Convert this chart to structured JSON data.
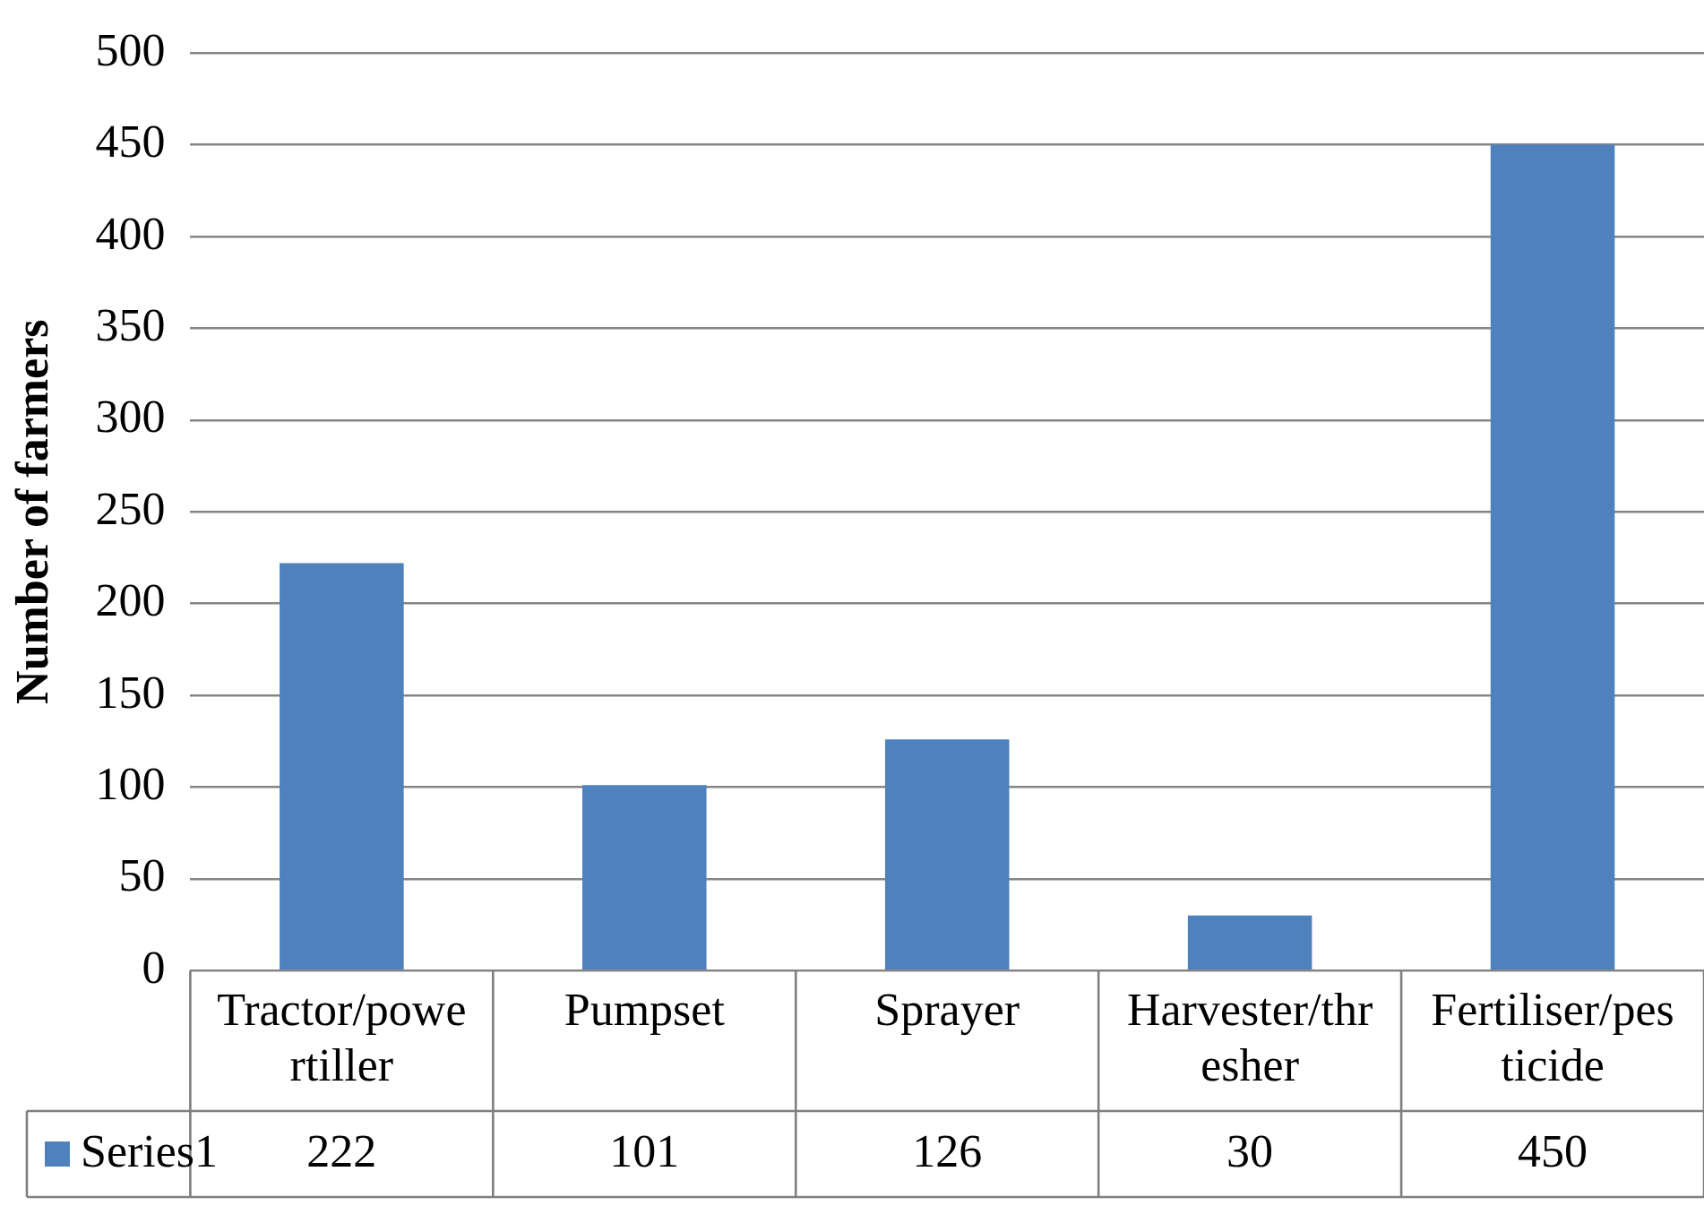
{
  "chart_data": {
    "type": "bar",
    "ylabel": "Number of farmers",
    "categories": [
      "Tractor/powertiller",
      "Pumpset",
      "Sprayer",
      "Harvester/thresher",
      "Fertiliser/pesticide"
    ],
    "series": [
      {
        "name": "Series1",
        "color": "#4f81bd",
        "values": [
          222,
          101,
          126,
          30,
          450
        ]
      }
    ],
    "ylim": [
      0,
      500
    ],
    "yticks": [
      0,
      50,
      100,
      150,
      200,
      250,
      300,
      350,
      400,
      450,
      500
    ],
    "grid": "y",
    "data_labels": true,
    "legend": "bottom left"
  }
}
